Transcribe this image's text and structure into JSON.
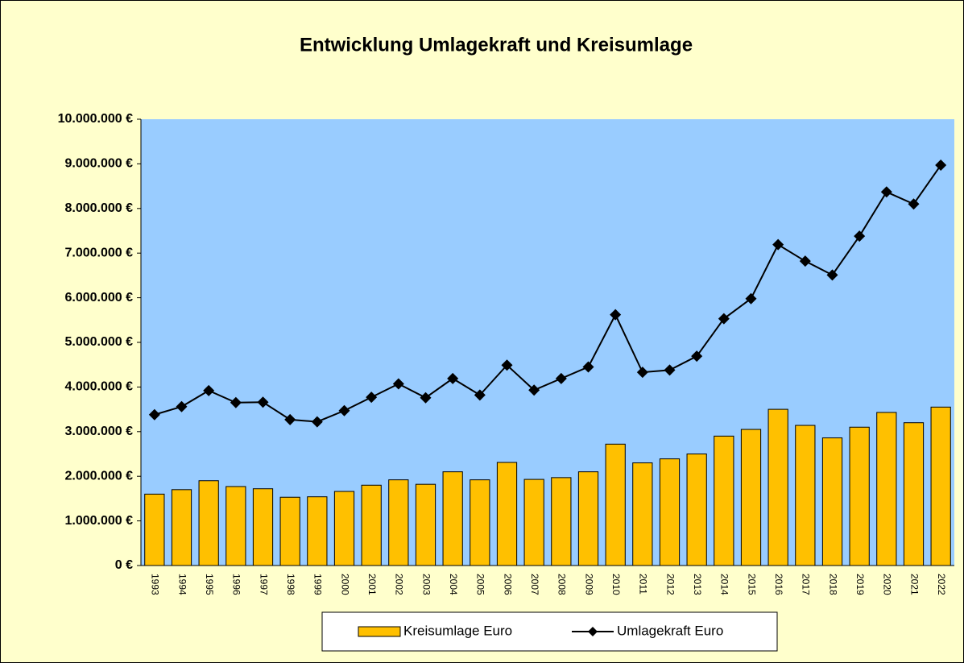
{
  "chart_data": {
    "type": "bar",
    "title": "Entwicklung Umlagekraft und Kreisumlage",
    "categories": [
      "1993",
      "1994",
      "1995",
      "1996",
      "1997",
      "1998",
      "1999",
      "2000",
      "2001",
      "2002",
      "2003",
      "2004",
      "2005",
      "2006",
      "2007",
      "2008",
      "2009",
      "2010",
      "2011",
      "2012",
      "2013",
      "2014",
      "2015",
      "2016",
      "2017",
      "2018",
      "2019",
      "2020",
      "2021",
      "2022"
    ],
    "series": [
      {
        "name": "Kreisumlage Euro",
        "type": "bar",
        "color": "#ffc000",
        "values": [
          1600000,
          1700000,
          1900000,
          1770000,
          1720000,
          1530000,
          1540000,
          1660000,
          1800000,
          1920000,
          1820000,
          2100000,
          1920000,
          2310000,
          1930000,
          1970000,
          2100000,
          2720000,
          2300000,
          2390000,
          2500000,
          2900000,
          3050000,
          3500000,
          3140000,
          2860000,
          3100000,
          3430000,
          3200000,
          3550000
        ]
      },
      {
        "name": "Umlagekraft Euro",
        "type": "line",
        "color": "#000000",
        "values": [
          3380000,
          3560000,
          3920000,
          3650000,
          3660000,
          3270000,
          3220000,
          3470000,
          3770000,
          4070000,
          3760000,
          4190000,
          3820000,
          4490000,
          3930000,
          4190000,
          4450000,
          5620000,
          4330000,
          4380000,
          4690000,
          5530000,
          5980000,
          7190000,
          6820000,
          6510000,
          7380000,
          8370000,
          8100000,
          8970000
        ]
      }
    ],
    "ylim": [
      0,
      10000000
    ],
    "yticks": [
      {
        "value": 0,
        "label": "0 €"
      },
      {
        "value": 1000000,
        "label": "1.000.000 €"
      },
      {
        "value": 2000000,
        "label": "2.000.000 €"
      },
      {
        "value": 3000000,
        "label": "3.000.000 €"
      },
      {
        "value": 4000000,
        "label": "4.000.000 €"
      },
      {
        "value": 5000000,
        "label": "5.000.000 €"
      },
      {
        "value": 6000000,
        "label": "6.000.000 €"
      },
      {
        "value": 7000000,
        "label": "7.000.000 €"
      },
      {
        "value": 8000000,
        "label": "8.000.000 €"
      },
      {
        "value": 9000000,
        "label": "9.000.000 €"
      },
      {
        "value": 10000000,
        "label": "10.000.000 €"
      }
    ],
    "grid": false,
    "legend": "bottom"
  }
}
